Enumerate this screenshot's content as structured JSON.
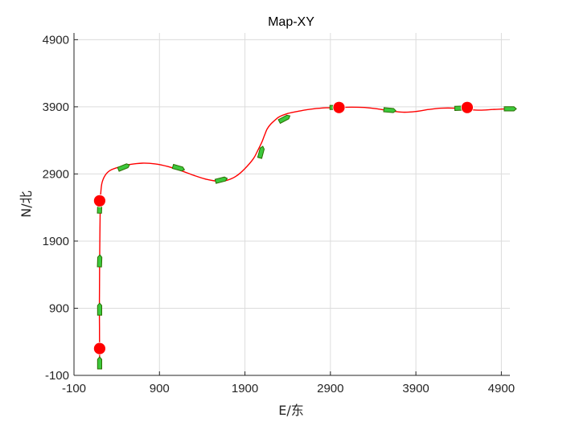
{
  "chart_data": {
    "type": "line",
    "title": "Map-XY",
    "xlabel": "E/东",
    "ylabel": "N/北",
    "xlim": [
      -100,
      5000
    ],
    "ylim": [
      -100,
      5000
    ],
    "xticks": [
      -100,
      900,
      1900,
      2900,
      3900,
      4900
    ],
    "yticks": [
      -100,
      900,
      1900,
      2900,
      3900,
      4900
    ],
    "grid": true,
    "colors": {
      "path": "#ff0000",
      "waypoint": "#ff0000",
      "vessel_fill": "#3cc83c",
      "vessel_edge": "#2a6e00"
    },
    "series": [
      {
        "type": "line",
        "x": [
          200,
          199,
          198,
          197,
          198,
          200,
          203,
          206,
          210,
          225,
          260,
          320,
          420,
          550,
          700,
          850,
          1000,
          1150,
          1300,
          1450,
          1600,
          1700,
          1800,
          1900,
          2000,
          2050,
          2100,
          2130,
          2160,
          2200,
          2250,
          2300,
          2400,
          2550,
          2700,
          2850,
          3000,
          3150,
          3300,
          3450,
          3600,
          3750,
          3900,
          4050,
          4200,
          4350,
          4500,
          4650,
          4800,
          4950,
          5000
        ],
        "y": [
          100,
          300,
          600,
          900,
          1200,
          1600,
          2000,
          2300,
          2550,
          2750,
          2870,
          2950,
          3000,
          3040,
          3060,
          3050,
          3010,
          2950,
          2880,
          2820,
          2790,
          2810,
          2870,
          2980,
          3130,
          3250,
          3380,
          3480,
          3570,
          3640,
          3700,
          3750,
          3800,
          3840,
          3870,
          3885,
          3890,
          3895,
          3890,
          3870,
          3840,
          3820,
          3830,
          3860,
          3880,
          3880,
          3860,
          3850,
          3860,
          3870,
          3870
        ]
      },
      {
        "type": "scatter",
        "x": [
          200,
          200,
          3000,
          4500
        ],
        "y": [
          300,
          2500,
          3890,
          3890
        ]
      },
      {
        "type": "scatter",
        "x": [
          200,
          200,
          200,
          200,
          480,
          1120,
          1620,
          2090,
          2360,
          2960,
          3590,
          4420,
          5000
        ],
        "y": [
          80,
          880,
          1600,
          2400,
          3000,
          2990,
          2810,
          3220,
          3720,
          3890,
          3850,
          3880,
          3870
        ],
        "angle_deg": [
          90,
          90,
          88,
          88,
          22,
          -16,
          14,
          75,
          28,
          0,
          -5,
          2,
          0
        ]
      }
    ]
  }
}
